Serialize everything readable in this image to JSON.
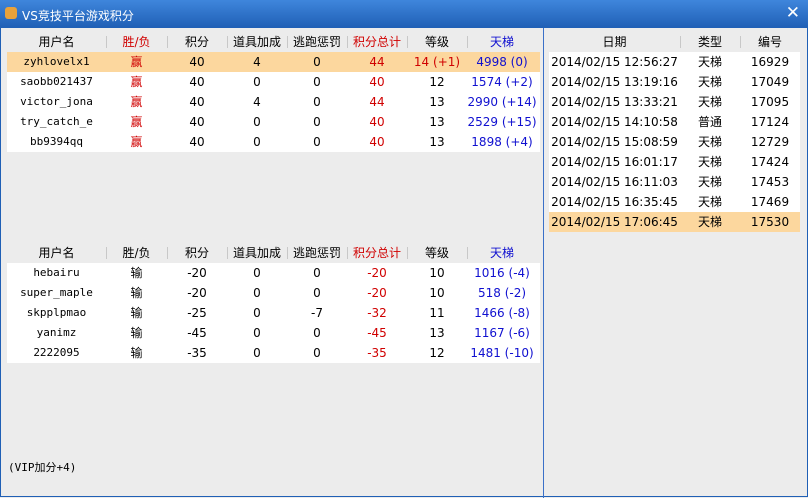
{
  "window": {
    "title": "VS竞技平台游戏积分",
    "close": "✕"
  },
  "win_table": {
    "columns": [
      "用户名",
      "胜/负",
      "积分",
      "道具加成",
      "逃跑惩罚",
      "积分总计",
      "等级",
      "天梯"
    ],
    "rows": [
      [
        "zyhlovelx1",
        "赢",
        "40",
        "4",
        "0",
        "44",
        "14 (+1)",
        "4998 (0)"
      ],
      [
        "saobb021437",
        "赢",
        "40",
        "0",
        "0",
        "40",
        "12",
        "1574 (+2)"
      ],
      [
        "victor_jona",
        "赢",
        "40",
        "4",
        "0",
        "44",
        "13",
        "2990 (+14)"
      ],
      [
        "try_catch_e",
        "赢",
        "40",
        "0",
        "0",
        "40",
        "13",
        "2529 (+15)"
      ],
      [
        "bb9394qq",
        "赢",
        "40",
        "0",
        "0",
        "40",
        "13",
        "1898 (+4)"
      ]
    ]
  },
  "lose_table": {
    "columns": [
      "用户名",
      "胜/负",
      "积分",
      "道具加成",
      "逃跑惩罚",
      "积分总计",
      "等级",
      "天梯"
    ],
    "rows": [
      [
        "hebairu",
        "输",
        "-20",
        "0",
        "0",
        "-20",
        "10",
        "1016 (-4)"
      ],
      [
        "super_maple",
        "输",
        "-20",
        "0",
        "0",
        "-20",
        "10",
        "518 (-2)"
      ],
      [
        "skpplpmao",
        "输",
        "-25",
        "0",
        "-7",
        "-32",
        "11",
        "1466 (-8)"
      ],
      [
        "yanimz",
        "输",
        "-45",
        "0",
        "0",
        "-45",
        "13",
        "1167 (-6)"
      ],
      [
        "2222095",
        "输",
        "-35",
        "0",
        "0",
        "-35",
        "12",
        "1481 (-10)"
      ]
    ]
  },
  "history_table": {
    "columns": [
      "日期",
      "类型",
      "编号"
    ],
    "rows": [
      [
        "2014/02/15 12:56:27",
        "天梯",
        "16929"
      ],
      [
        "2014/02/15 13:19:16",
        "天梯",
        "17049"
      ],
      [
        "2014/02/15 13:33:21",
        "天梯",
        "17095"
      ],
      [
        "2014/02/15 14:10:58",
        "普通",
        "17124"
      ],
      [
        "2014/02/15 15:08:59",
        "天梯",
        "12729"
      ],
      [
        "2014/02/15 16:01:17",
        "天梯",
        "17424"
      ],
      [
        "2014/02/15 16:11:03",
        "天梯",
        "17453"
      ],
      [
        "2014/02/15 16:35:45",
        "天梯",
        "17469"
      ],
      [
        "2014/02/15 17:06:45",
        "天梯",
        "17530"
      ]
    ]
  },
  "footer": "(VIP加分+4)"
}
